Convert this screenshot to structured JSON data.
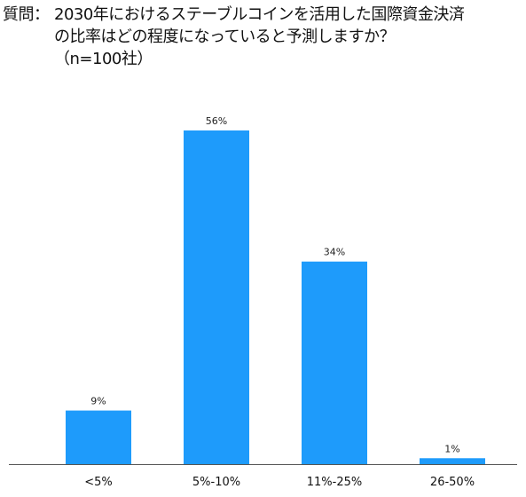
{
  "question": {
    "prefix": "質問：",
    "line1": "2030年におけるステーブルコインを活用した国際資金決済",
    "line2": "の比率はどの程度になっていると予測しますか？",
    "line3": "（n=100社）"
  },
  "colors": {
    "bar": "#1e9bfb",
    "axis": "#555555"
  },
  "chart_data": {
    "type": "bar",
    "title": "",
    "xlabel": "",
    "ylabel": "",
    "categories": [
      "<5%",
      "5%-10%",
      "11%-25%",
      "26-50%"
    ],
    "values": [
      9,
      56,
      34,
      1
    ],
    "value_labels": [
      "9%",
      "56%",
      "34%",
      "1%"
    ],
    "ylim": [
      0,
      56
    ],
    "grid": false,
    "legend": "none"
  }
}
